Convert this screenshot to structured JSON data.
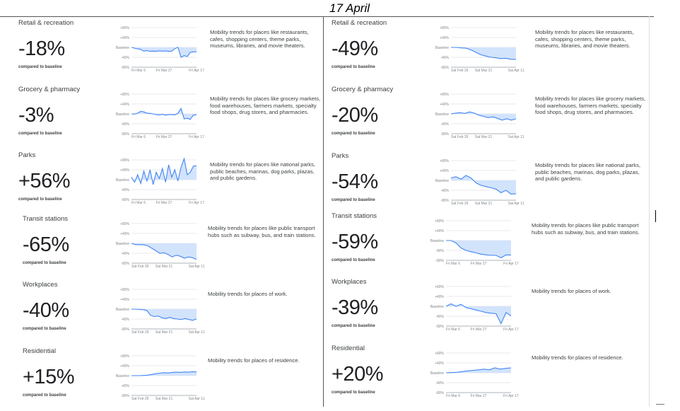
{
  "header": {
    "title": "17 April"
  },
  "left_panel": {
    "cards": [
      {
        "title": "Retail & recreation",
        "value": "-18%",
        "compare": "compared to baseline",
        "description": "Mobility trends for places like restaurants, cafes, shopping centers, theme parks, museums, libraries, and movie theaters.",
        "y_ticks": [
          "+80%",
          "+40%",
          "Baseline",
          "-40%",
          "-80%"
        ],
        "x_ticks": [
          "Fri Mar 6",
          "Fri Mar 27",
          "Fri Apr 17"
        ],
        "trend": [
          0,
          -3,
          -6,
          -8,
          -15,
          -13,
          -16,
          -15,
          -16,
          -14,
          -15,
          -14,
          -16,
          -15,
          -5,
          0,
          -40,
          -33,
          -37,
          -20,
          -18,
          -18
        ]
      },
      {
        "title": "Grocery & pharmacy",
        "value": "-3%",
        "compare": "compared to baseline",
        "description": "Mobility trends for places like grocery markets, food warehouses, farmers markets, specialty food shops, drug stores, and pharmacies.",
        "y_ticks": [
          "+80%",
          "+40%",
          "Baseline",
          "-40%",
          "-80%"
        ],
        "x_ticks": [
          "Fri Mar 6",
          "Fri Mar 27",
          "Fri Apr 17"
        ],
        "trend": [
          0,
          -1,
          3,
          10,
          8,
          3,
          2,
          0,
          -3,
          -4,
          -2,
          -5,
          -3,
          -3,
          -4,
          2,
          22,
          -20,
          -18,
          -22,
          -5,
          -3
        ]
      },
      {
        "title": "Parks",
        "value": "+56%",
        "compare": "compared to baseline",
        "description": "Mobility trends for places like national parks, public beaches, marinas, dog parks, plazas, and public gardens.",
        "y_ticks": [
          "+80%",
          "+40%",
          "Baseline",
          "-40%",
          "-80%"
        ],
        "x_ticks": [
          "Fri Mar 6",
          "Fri Mar 27",
          "Fri Apr 17"
        ],
        "trend": [
          10,
          -10,
          20,
          -15,
          35,
          -5,
          40,
          -20,
          30,
          5,
          45,
          -10,
          60,
          10,
          40,
          -5,
          50,
          85,
          20,
          30,
          55,
          56
        ]
      },
      {
        "title": "Transit stations",
        "value": "-65%",
        "compare": "compared to baseline",
        "description": "Mobility trends for places like public transport hubs such as subway, bus, and train stations.",
        "y_ticks": [
          "+80%",
          "+40%",
          "Baseline",
          "-40%",
          "-80%"
        ],
        "x_ticks": [
          "Sat Feb 29",
          "Sat Mar 21",
          "Sat Apr 11"
        ],
        "trend": [
          0,
          -5,
          -5,
          -6,
          -10,
          -20,
          -30,
          -40,
          -38,
          -45,
          -55,
          -48,
          -52,
          -60,
          -55,
          -58,
          -65
        ]
      },
      {
        "title": "Workplaces",
        "value": "-40%",
        "compare": "compared to baseline",
        "description": "Mobility trends for places of work.",
        "y_ticks": [
          "+80%",
          "+40%",
          "Baseline",
          "-40%",
          "-80%"
        ],
        "x_ticks": [
          "Sat Feb 29",
          "Sat Mar 21",
          "Sat Apr 11"
        ],
        "trend": [
          0,
          0,
          -1,
          -2,
          -5,
          -25,
          -30,
          -28,
          -35,
          -38,
          -33,
          -38,
          -40,
          -42,
          -38,
          -42,
          -45,
          -40
        ]
      },
      {
        "title": "Residential",
        "value": "+15%",
        "compare": "compared to baseline",
        "description": "Mobility trends for places of residence.",
        "y_ticks": [
          "+80%",
          "+40%",
          "Baseline",
          "-40%",
          "-80%"
        ],
        "x_ticks": [
          "Sat Feb 29",
          "Sat Mar 21",
          "Sat Apr 11"
        ],
        "trend": [
          0,
          0,
          0,
          1,
          2,
          5,
          8,
          10,
          12,
          11,
          13,
          14,
          13,
          15,
          14,
          16,
          15
        ]
      }
    ]
  },
  "right_panel": {
    "cards": [
      {
        "title": "Retail & recreation",
        "value": "-49%",
        "compare": "compared to baseline",
        "description": "Mobility trends for places like restaurants, cafes, shopping centers, theme parks, museums, libraries, and movie theaters.",
        "y_ticks": [
          "+80%",
          "+40%",
          "Baseline",
          "-40%",
          "-80%"
        ],
        "x_ticks": [
          "Sat Feb 29",
          "Sat Mar 21",
          "Sat Apr 11"
        ],
        "trend": [
          0,
          0,
          -2,
          -3,
          -10,
          -20,
          -30,
          -35,
          -40,
          -42,
          -45,
          -44,
          -48,
          -49
        ]
      },
      {
        "title": "Grocery & pharmacy",
        "value": "-20%",
        "compare": "compared to baseline",
        "description": "Mobility trends for places like grocery markets, food warehouses, farmers markets, specialty food shops, drug stores, and pharmacies.",
        "y_ticks": [
          "+80%",
          "+40%",
          "Baseline",
          "-40%",
          "-80%"
        ],
        "x_ticks": [
          "Sat Feb 29",
          "Sat Mar 21",
          "Sat Apr 11"
        ],
        "trend": [
          0,
          3,
          5,
          2,
          8,
          3,
          -5,
          -10,
          -15,
          -12,
          -18,
          -25,
          -20,
          -25,
          -20
        ]
      },
      {
        "title": "Parks",
        "value": "-54%",
        "compare": "compared to baseline",
        "description": "Mobility trends for places like national parks, public beaches, marinas, dog parks, plazas, and public gardens.",
        "y_ticks": [
          "+80%",
          "+40%",
          "Baseline",
          "-40%",
          "-80%"
        ],
        "x_ticks": [
          "Sat Feb 29",
          "Sat Mar 21",
          "Sat Apr 11"
        ],
        "trend": [
          10,
          15,
          5,
          20,
          10,
          -10,
          -20,
          -25,
          -30,
          -35,
          -50,
          -40,
          -55,
          -54
        ]
      },
      {
        "title": "Transit stations",
        "value": "-59%",
        "compare": "compared to baseline",
        "description": "Mobility trends for places like public transport hubs such as subway, bus, and train stations.",
        "y_ticks": [
          "+80%",
          "+40%",
          "Baseline",
          "-40%",
          "-80%"
        ],
        "x_ticks": [
          "Fri Mar 6",
          "Fri Mar 27",
          "Fri Apr 17"
        ],
        "trend": [
          0,
          0,
          -10,
          -30,
          -40,
          -45,
          -50,
          -55,
          -58,
          -60,
          -60,
          -70,
          -58,
          -59
        ]
      },
      {
        "title": "Workplaces",
        "value": "-39%",
        "compare": "compared to baseline",
        "description": "Mobility trends for places of work.",
        "y_ticks": [
          "+80%",
          "+40%",
          "Baseline",
          "-40%",
          "-80%"
        ],
        "x_ticks": [
          "Fri Mar 6",
          "Fri Mar 27",
          "Fri Apr 17"
        ],
        "trend": [
          0,
          10,
          0,
          8,
          -5,
          -10,
          -15,
          -20,
          -25,
          -28,
          -30,
          -70,
          -25,
          -39
        ]
      },
      {
        "title": "Residential",
        "value": "+20%",
        "compare": "compared to baseline",
        "description": "Mobility trends for places of residence.",
        "y_ticks": [
          "+80%",
          "+40%",
          "Baseline",
          "-40%",
          "-80%"
        ],
        "x_ticks": [
          "Fri Mar 6",
          "Fri Mar 27",
          "Fri Apr 17"
        ],
        "trend": [
          0,
          1,
          2,
          5,
          8,
          10,
          12,
          15,
          12,
          20,
          15,
          18,
          20
        ]
      }
    ]
  },
  "colors": {
    "line": "#4285f4",
    "fill": "#d2e3fc",
    "grid": "#e8eaed"
  }
}
